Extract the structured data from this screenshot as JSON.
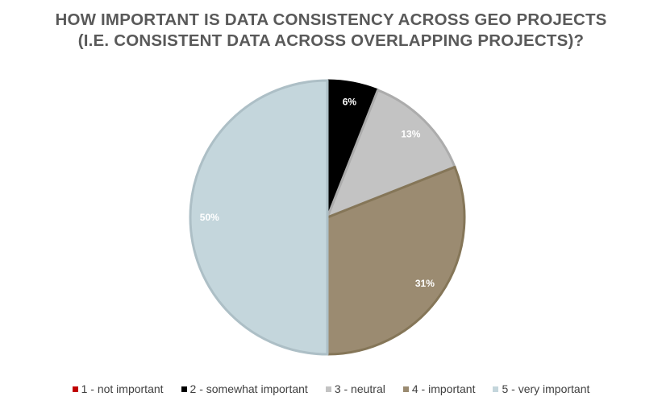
{
  "chart_data": {
    "type": "pie",
    "title": "HOW IMPORTANT IS DATA CONSISTENCY ACROSS GEO PROJECTS (I.E. CONSISTENT DATA ACROSS OVERLAPPING PROJECTS)?",
    "title_lines": [
      "HOW IMPORTANT IS DATA CONSISTENCY ACROSS GEO PROJECTS",
      "(I.E. CONSISTENT DATA ACROSS OVERLAPPING PROJECTS)?"
    ],
    "legend_placement": "bottom",
    "slices": [
      {
        "label": "1 - not important",
        "value": 0,
        "display": "",
        "color": "#c00000",
        "border": "#c00000",
        "label_color": "#ffffff"
      },
      {
        "label": "2 - somewhat important",
        "value": 6,
        "display": "6%",
        "color": "#000000",
        "border": "#000000",
        "label_color": "#ffffff"
      },
      {
        "label": "3 - neutral",
        "value": 13,
        "display": "13%",
        "color": "#c3c3c3",
        "border": "#acacac",
        "label_color": "#ffffff"
      },
      {
        "label": "4 - important",
        "value": 31,
        "display": "31%",
        "color": "#9b8b71",
        "border": "#857658",
        "label_color": "#ffffff"
      },
      {
        "label": "5 - very important",
        "value": 50,
        "display": "50%",
        "color": "#c4d6dc",
        "border": "#adbfc6",
        "label_color": "#ffffff"
      }
    ]
  }
}
